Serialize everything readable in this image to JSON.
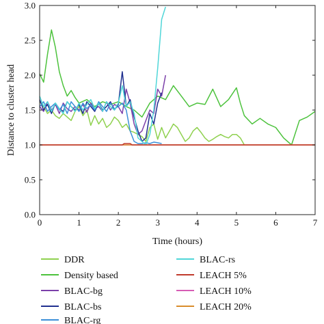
{
  "chart_data": {
    "type": "line",
    "title": "",
    "xlabel": "Time (hours)",
    "ylabel": "Distance to cluster head",
    "xlim": [
      0,
      7
    ],
    "ylim": [
      0,
      3.0
    ],
    "grid": false,
    "legend_position": "bottom",
    "x_ticks": [
      "0",
      "1",
      "2",
      "3",
      "4",
      "5",
      "6",
      "7"
    ],
    "y_ticks": [
      "0.0",
      "0.5",
      "1.0",
      "1.5",
      "2.0",
      "2.5",
      "3.0"
    ],
    "series": [
      {
        "name": "DDR",
        "color": "#8fd14f",
        "x": [
          0,
          0.1,
          0.2,
          0.3,
          0.4,
          0.5,
          0.6,
          0.7,
          0.8,
          0.9,
          1.0,
          1.1,
          1.2,
          1.3,
          1.4,
          1.5,
          1.6,
          1.7,
          1.8,
          1.9,
          2.0,
          2.1,
          2.2,
          2.3,
          2.4,
          2.5,
          2.6,
          2.7,
          2.8,
          2.9,
          3.0,
          3.1,
          3.2,
          3.3,
          3.4,
          3.5,
          3.6,
          3.7,
          3.8,
          3.9,
          4.0,
          4.1,
          4.2,
          4.3,
          4.4,
          4.5,
          4.6,
          4.7,
          4.8,
          4.9,
          5.0,
          5.1,
          5.2
        ],
        "y": [
          1.62,
          1.55,
          1.45,
          1.5,
          1.42,
          1.38,
          1.45,
          1.4,
          1.35,
          1.48,
          1.55,
          1.42,
          1.5,
          1.28,
          1.42,
          1.3,
          1.38,
          1.25,
          1.3,
          1.4,
          1.35,
          1.25,
          1.3,
          1.2,
          1.18,
          1.15,
          1.12,
          1.05,
          1.25,
          1.3,
          1.08,
          1.25,
          1.1,
          1.2,
          1.3,
          1.25,
          1.15,
          1.05,
          1.1,
          1.2,
          1.25,
          1.18,
          1.1,
          1.05,
          1.08,
          1.12,
          1.15,
          1.12,
          1.1,
          1.15,
          1.15,
          1.1,
          1.0
        ]
      },
      {
        "name": "Density based",
        "color": "#4cc23c",
        "x": [
          0,
          0.1,
          0.2,
          0.3,
          0.4,
          0.5,
          0.6,
          0.7,
          0.8,
          0.9,
          1.0,
          1.2,
          1.4,
          1.6,
          1.8,
          2.0,
          2.2,
          2.4,
          2.6,
          2.8,
          3.0,
          3.2,
          3.4,
          3.6,
          3.8,
          4.0,
          4.2,
          4.4,
          4.6,
          4.8,
          5.0,
          5.1,
          5.2,
          5.4,
          5.6,
          5.8,
          6.0,
          6.2,
          6.4,
          6.6,
          6.8,
          7.0
        ],
        "y": [
          2.02,
          1.9,
          2.3,
          2.65,
          2.4,
          2.05,
          1.85,
          1.7,
          1.78,
          1.68,
          1.6,
          1.65,
          1.55,
          1.62,
          1.58,
          1.62,
          1.55,
          1.5,
          1.4,
          1.6,
          1.7,
          1.65,
          1.85,
          1.7,
          1.55,
          1.6,
          1.58,
          1.8,
          1.55,
          1.65,
          1.82,
          1.6,
          1.42,
          1.3,
          1.38,
          1.3,
          1.25,
          1.1,
          1.0,
          1.35,
          1.4,
          1.48
        ]
      },
      {
        "name": "BLAC-bg",
        "color": "#7b3fa9",
        "x": [
          0,
          0.1,
          0.2,
          0.3,
          0.4,
          0.5,
          0.6,
          0.7,
          0.8,
          0.9,
          1.0,
          1.1,
          1.2,
          1.3,
          1.4,
          1.5,
          1.6,
          1.7,
          1.8,
          1.9,
          2.0,
          2.1,
          2.2,
          2.3,
          2.4,
          2.5,
          2.6,
          2.7,
          2.8,
          2.9,
          3.0,
          3.1,
          3.2
        ],
        "y": [
          1.55,
          1.48,
          1.62,
          1.5,
          1.58,
          1.45,
          1.6,
          1.52,
          1.48,
          1.55,
          1.5,
          1.58,
          1.47,
          1.6,
          1.52,
          1.55,
          1.48,
          1.62,
          1.5,
          1.58,
          1.55,
          1.45,
          1.8,
          1.6,
          1.3,
          1.15,
          1.2,
          1.35,
          1.5,
          1.45,
          1.8,
          1.7,
          2.0
        ]
      },
      {
        "name": "BLAC-bs",
        "color": "#1f2f8f",
        "x": [
          0,
          0.1,
          0.2,
          0.3,
          0.4,
          0.5,
          0.6,
          0.7,
          0.8,
          0.9,
          1.0,
          1.1,
          1.2,
          1.3,
          1.4,
          1.5,
          1.6,
          1.7,
          1.8,
          1.9,
          2.0,
          2.1,
          2.2,
          2.3,
          2.4,
          2.5,
          2.6,
          2.7,
          2.8,
          2.9,
          3.0,
          3.1
        ],
        "y": [
          1.65,
          1.5,
          1.58,
          1.45,
          1.6,
          1.52,
          1.48,
          1.62,
          1.55,
          1.5,
          1.58,
          1.45,
          1.62,
          1.55,
          1.48,
          1.6,
          1.5,
          1.55,
          1.62,
          1.5,
          1.58,
          2.05,
          1.55,
          1.65,
          1.4,
          1.2,
          1.05,
          1.1,
          1.45,
          1.3,
          1.6,
          1.75
        ]
      },
      {
        "name": "BLAC-rg",
        "color": "#3b8fd8",
        "x": [
          0,
          0.1,
          0.2,
          0.3,
          0.4,
          0.5,
          0.6,
          0.7,
          0.8,
          0.9,
          1.0,
          1.1,
          1.2,
          1.3,
          1.4,
          1.5,
          1.6,
          1.7,
          1.8,
          1.9,
          2.0,
          2.1,
          2.2,
          2.3,
          2.4,
          2.5,
          2.6,
          2.7,
          2.8,
          2.9,
          3.0,
          3.1
        ],
        "y": [
          1.55,
          1.62,
          1.48,
          1.55,
          1.6,
          1.5,
          1.58,
          1.45,
          1.62,
          1.55,
          1.48,
          1.6,
          1.52,
          1.58,
          1.5,
          1.62,
          1.55,
          1.48,
          1.6,
          1.52,
          1.55,
          1.6,
          1.5,
          1.2,
          1.05,
          1.02,
          1.02,
          1.03,
          1.02,
          1.04,
          1.03,
          1.02
        ]
      },
      {
        "name": "BLAC-rs",
        "color": "#4fd6d8",
        "x": [
          0,
          0.1,
          0.2,
          0.3,
          0.4,
          0.5,
          0.6,
          0.7,
          0.8,
          0.9,
          1.0,
          1.1,
          1.2,
          1.3,
          1.4,
          1.5,
          1.6,
          1.7,
          1.8,
          1.9,
          2.0,
          2.1,
          2.2,
          2.3,
          2.4,
          2.5,
          2.6,
          2.7,
          2.8,
          2.9,
          3.0,
          3.1,
          3.2
        ],
        "y": [
          1.7,
          1.55,
          1.62,
          1.48,
          1.6,
          1.52,
          1.45,
          1.62,
          1.55,
          1.48,
          1.6,
          1.5,
          1.58,
          1.65,
          1.52,
          1.6,
          1.48,
          1.62,
          1.55,
          1.5,
          1.6,
          1.85,
          1.55,
          1.62,
          1.45,
          1.1,
          1.05,
          1.0,
          1.15,
          1.5,
          2.1,
          2.8,
          2.98
        ]
      },
      {
        "name": "LEACH 5%",
        "color": "#c0392b",
        "x": [
          0,
          2.1,
          2.15,
          2.3,
          2.35,
          7
        ],
        "y": [
          1.0,
          1.0,
          1.02,
          1.02,
          1.0,
          1.0
        ]
      },
      {
        "name": "LEACH 10%",
        "color": "#d65cb4",
        "x": [
          0,
          7
        ],
        "y": [
          1.0,
          1.0
        ]
      },
      {
        "name": "LEACH 20%",
        "color": "#d98c2b",
        "x": [
          0,
          7
        ],
        "y": [
          1.0,
          1.0
        ]
      }
    ]
  }
}
